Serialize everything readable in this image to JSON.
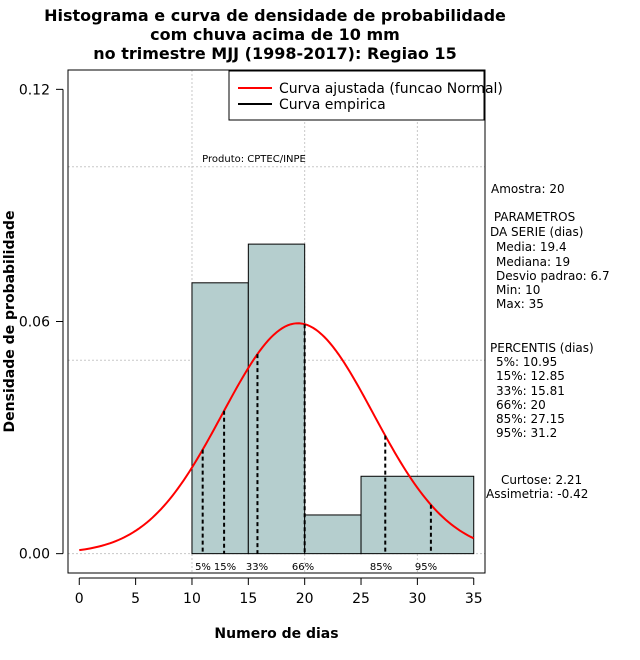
{
  "chart_data": {
    "type": "histogram",
    "title_lines": [
      "Histograma e curva de densidade de probabilidade",
      "com chuva acima de 10 mm",
      "no trimestre MJJ (1998-2017): Regiao 15"
    ],
    "xlabel": "Numero de dias",
    "ylabel": "Densidade de probabilidade",
    "xlim": [
      -1,
      36
    ],
    "ylim": [
      -0.005,
      0.125
    ],
    "xticks": [
      0,
      5,
      10,
      15,
      20,
      25,
      30,
      35
    ],
    "yticks": [
      0.0,
      0.06,
      0.12
    ],
    "ytick_labels": [
      "0.00",
      "0.06",
      "0.12"
    ],
    "grid_x": [
      10,
      20,
      30
    ],
    "grid_y": [
      0.0,
      0.05,
      0.1
    ],
    "bars": [
      {
        "x0": 10,
        "x1": 15,
        "density": 0.07
      },
      {
        "x0": 15,
        "x1": 20,
        "density": 0.08
      },
      {
        "x0": 20,
        "x1": 25,
        "density": 0.01
      },
      {
        "x0": 25,
        "x1": 35,
        "density": 0.02
      }
    ],
    "normal_curve": {
      "mean": 19.4,
      "sd": 6.7,
      "x_from": 0,
      "x_to": 35,
      "color": "#ff0000"
    },
    "percentile_lines": [
      {
        "label": "5%",
        "x": 10.95
      },
      {
        "label": "15%",
        "x": 12.85
      },
      {
        "label": "33%",
        "x": 15.81
      },
      {
        "label": "66%",
        "x": 20
      },
      {
        "label": "85%",
        "x": 27.15
      },
      {
        "label": "95%",
        "x": 31.2
      }
    ],
    "percentile_label_text": [
      "5%",
      "15%",
      "33%",
      "66%",
      "85%",
      "95%"
    ],
    "legend": [
      {
        "label": "Curva ajustada (funcao Normal)",
        "color": "#ff0000"
      },
      {
        "label": "Curva empirica",
        "color": "#000000"
      }
    ],
    "annotation": "Produto: CPTEC/INPE",
    "bar_color": "#b5cece"
  },
  "side_panel": {
    "sample": "Amostra: 20",
    "params_header": " PARAMETROS",
    "params_sub": "DA SERIE (dias)",
    "params": [
      "Media: 19.4",
      "Mediana: 19",
      "Desvio padrao: 6.7",
      "Min: 10",
      "Max: 35"
    ],
    "perc_header": "PERCENTIS (dias)",
    "percentiles": [
      "5%: 10.95",
      "15%: 12.85",
      "33%: 15.81",
      "66%: 20",
      "85%: 27.15",
      "95%: 31.2"
    ],
    "kurtosis": "Curtose: 2.21",
    "skewness": "Assimetria: -0.42"
  }
}
